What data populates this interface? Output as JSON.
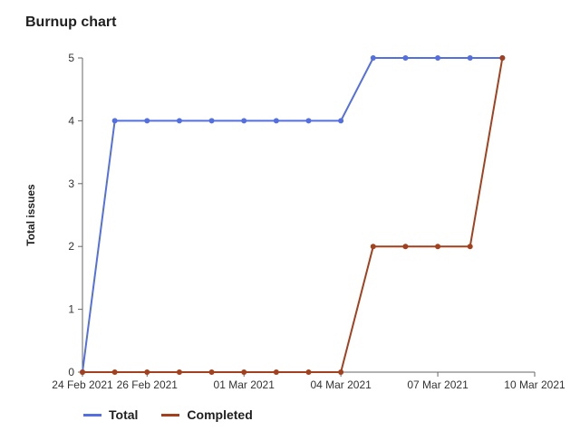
{
  "header": {
    "title": "Burnup chart"
  },
  "colors": {
    "total": "#5470e0",
    "completed": "#a3411e",
    "axis": "#666666"
  },
  "chart_data": {
    "type": "line",
    "title": "Burnup chart",
    "xlabel": "",
    "ylabel": "Total issues",
    "x": [
      "2021-02-24",
      "2021-02-25",
      "2021-02-26",
      "2021-02-27",
      "2021-02-28",
      "2021-03-01",
      "2021-03-02",
      "2021-03-03",
      "2021-03-04",
      "2021-03-05",
      "2021-03-06",
      "2021-03-07",
      "2021-03-08",
      "2021-03-09"
    ],
    "x_tick_labels": [
      "24 Feb 2021",
      "26 Feb 2021",
      "01 Mar 2021",
      "04 Mar 2021",
      "07 Mar 2021",
      "10 Mar 2021"
    ],
    "x_tick_dates": [
      "2021-02-24",
      "2021-02-26",
      "2021-03-01",
      "2021-03-04",
      "2021-03-07",
      "2021-03-10"
    ],
    "xlim": [
      "2021-02-24",
      "2021-03-10"
    ],
    "ylim": [
      0,
      5
    ],
    "y_ticks": [
      0,
      1,
      2,
      3,
      4,
      5
    ],
    "grid": false,
    "legend_position": "bottom-left",
    "series": [
      {
        "name": "Total",
        "values": [
          0,
          4,
          4,
          4,
          4,
          4,
          4,
          4,
          4,
          5,
          5,
          5,
          5,
          5
        ]
      },
      {
        "name": "Completed",
        "values": [
          0,
          0,
          0,
          0,
          0,
          0,
          0,
          0,
          0,
          2,
          2,
          2,
          2,
          5
        ]
      }
    ]
  }
}
